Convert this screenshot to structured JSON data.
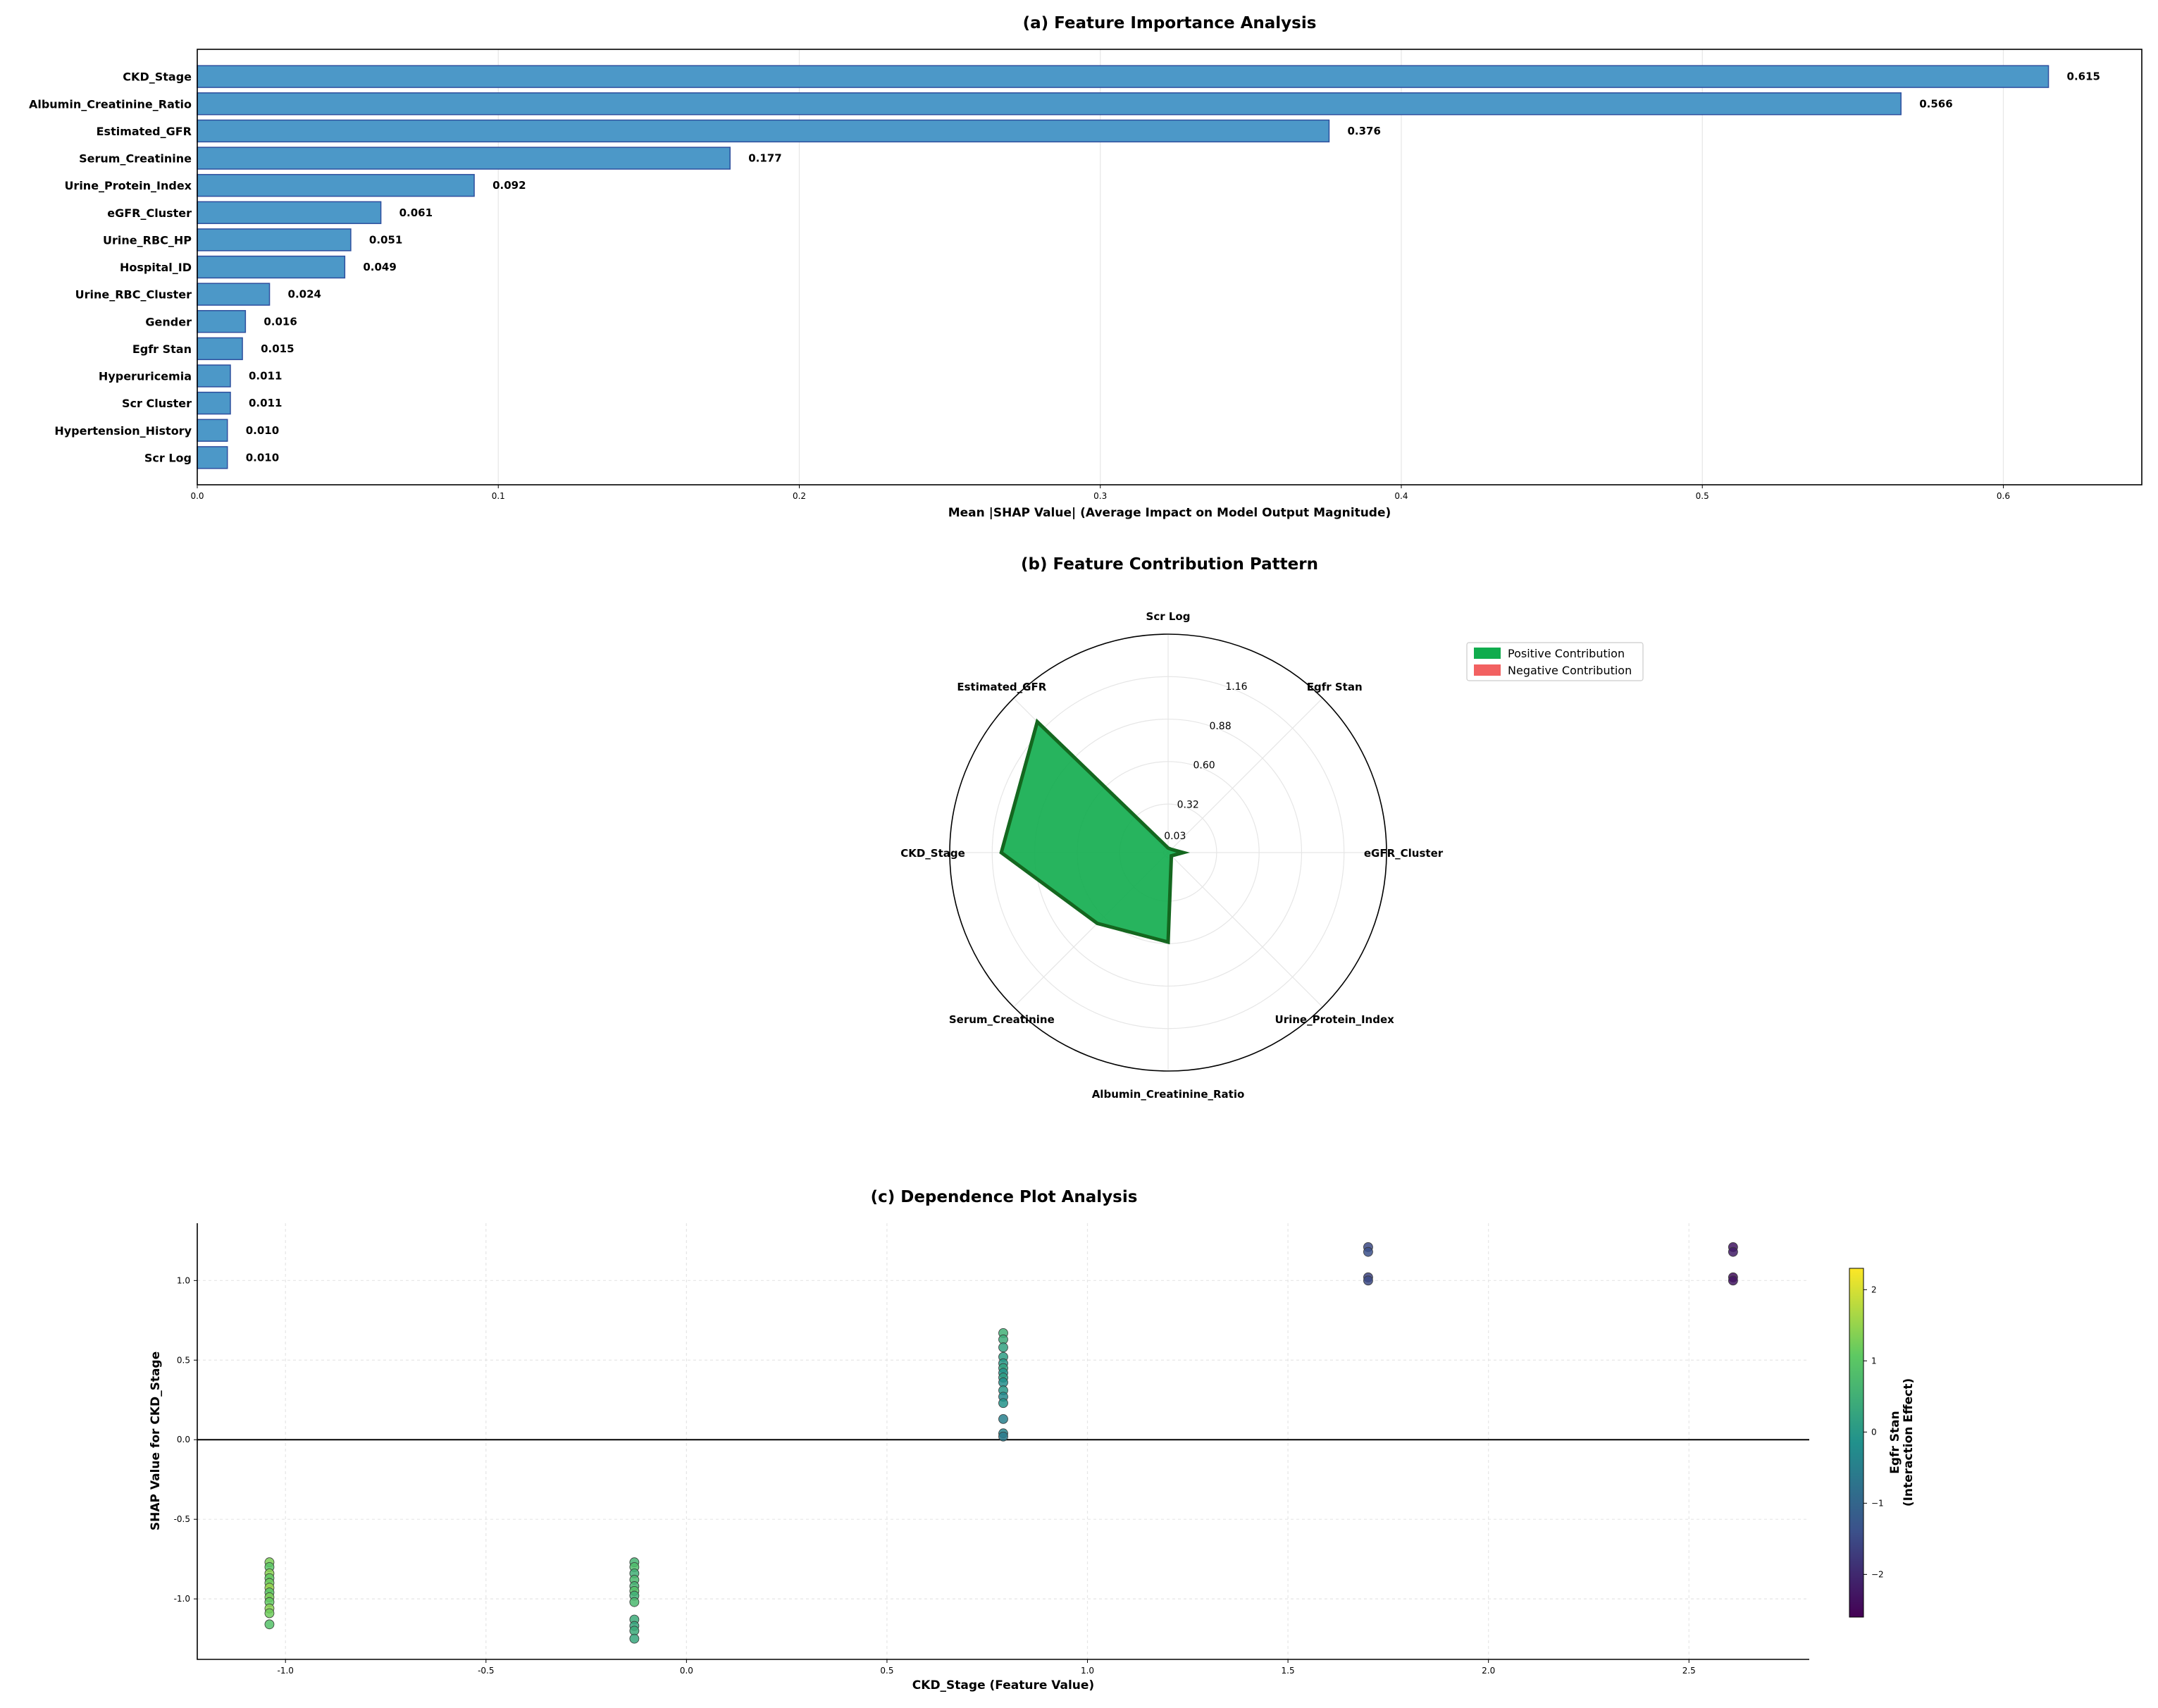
{
  "chart_data": [
    {
      "type": "bar",
      "orientation": "horizontal",
      "title": "(a) Feature Importance Analysis",
      "xlabel": "Mean |SHAP Value| (Average Impact on Model Output Magnitude)",
      "ylabel": "",
      "xlim": [
        0,
        0.646
      ],
      "xticks": [
        "0.0",
        "0.1",
        "0.2",
        "0.3",
        "0.4",
        "0.5",
        "0.6"
      ],
      "grid": "x",
      "color": "#4c98c8",
      "edge_color": "#2e4f9e",
      "categories": [
        "CKD_Stage",
        "Albumin_Creatinine_Ratio",
        "Estimated_GFR",
        "Serum_Creatinine",
        "Urine_Protein_Index",
        "eGFR_Cluster",
        "Urine_RBC_HP",
        "Hospital_ID",
        "Urine_RBC_Cluster",
        "Gender",
        "Egfr Stan",
        "Hyperuricemia",
        "Scr Cluster",
        "Hypertension_History",
        "Scr Log"
      ],
      "values": [
        0.615,
        0.566,
        0.376,
        0.177,
        0.092,
        0.061,
        0.051,
        0.049,
        0.024,
        0.016,
        0.015,
        0.011,
        0.011,
        0.01,
        0.01
      ],
      "value_labels": [
        "0.615",
        "0.566",
        "0.376",
        "0.177",
        "0.092",
        "0.061",
        "0.051",
        "0.049",
        "0.024",
        "0.016",
        "0.015",
        "0.011",
        "0.011",
        "0.010",
        "0.010"
      ]
    },
    {
      "type": "radar",
      "title": "(b) Feature Contribution Pattern",
      "axes": [
        "Scr Log",
        "Egfr Stan",
        "eGFR_Cluster",
        "Urine_Protein_Index",
        "Albumin_Creatinine_Ratio",
        "Serum_Creatinine",
        "CKD_Stage",
        "Estimated_GFR"
      ],
      "values": [
        0.03,
        0.03,
        0.1,
        0.03,
        0.59,
        0.66,
        1.1,
        1.22
      ],
      "rmax": 1.44,
      "rticks": [
        "0.03",
        "0.32",
        "0.60",
        "0.88",
        "1.16"
      ],
      "rtick_values": [
        0.03,
        0.32,
        0.6,
        0.88,
        1.16
      ],
      "legend": [
        {
          "label": "Positive Contribution",
          "color": "#10ac4d"
        },
        {
          "label": "Negative Contribution",
          "color": "#f26161"
        }
      ],
      "legend_position": "top-right",
      "fill_color": "#10ac4d",
      "line_color": "#14671f"
    },
    {
      "type": "scatter",
      "title": "(c) Dependence Plot Analysis",
      "xlabel": "CKD_Stage (Feature Value)",
      "ylabel": "SHAP Value for CKD_Stage",
      "xlim": [
        -1.22,
        2.8
      ],
      "ylim": [
        -1.38,
        1.36
      ],
      "xticks": [
        "-1.0",
        "-0.5",
        "0.0",
        "0.5",
        "1.0",
        "1.5",
        "2.0",
        "2.5"
      ],
      "yticks": [
        "-1.0",
        "-0.5",
        "0.0",
        "0.5",
        "1.0"
      ],
      "zero_line": 0,
      "colorbar": {
        "label": "Egfr Stan\n(Interaction Effect)",
        "label_lines": [
          "Egfr Stan",
          "(Interaction Effect)"
        ],
        "range": [
          -2.6,
          2.3
        ],
        "ticks": [
          "2",
          "1",
          "0",
          "−1",
          "−2"
        ],
        "tick_values": [
          2,
          1,
          0,
          -1,
          -2
        ],
        "colormap": "viridis"
      },
      "points": [
        {
          "x": -1.04,
          "y": -0.77,
          "c": 1.3
        },
        {
          "x": -1.04,
          "y": -0.8,
          "c": 1.0
        },
        {
          "x": -1.04,
          "y": -0.84,
          "c": 1.4
        },
        {
          "x": -1.04,
          "y": -0.87,
          "c": 1.1
        },
        {
          "x": -1.04,
          "y": -0.9,
          "c": 1.2
        },
        {
          "x": -1.04,
          "y": -0.93,
          "c": 1.5
        },
        {
          "x": -1.04,
          "y": -0.96,
          "c": 1.0
        },
        {
          "x": -1.04,
          "y": -0.99,
          "c": 1.3
        },
        {
          "x": -1.04,
          "y": -1.02,
          "c": 1.1
        },
        {
          "x": -1.04,
          "y": -1.06,
          "c": 1.4
        },
        {
          "x": -1.04,
          "y": -1.09,
          "c": 1.2
        },
        {
          "x": -1.04,
          "y": -1.16,
          "c": 0.9
        },
        {
          "x": -0.13,
          "y": -0.77,
          "c": 0.6
        },
        {
          "x": -0.13,
          "y": -0.8,
          "c": 0.8
        },
        {
          "x": -0.13,
          "y": -0.84,
          "c": 0.5
        },
        {
          "x": -0.13,
          "y": -0.88,
          "c": 0.7
        },
        {
          "x": -0.13,
          "y": -0.92,
          "c": 0.6
        },
        {
          "x": -0.13,
          "y": -0.95,
          "c": 0.9
        },
        {
          "x": -0.13,
          "y": -0.98,
          "c": 0.5
        },
        {
          "x": -0.13,
          "y": -1.02,
          "c": 0.7
        },
        {
          "x": -0.13,
          "y": -1.13,
          "c": 0.4
        },
        {
          "x": -0.13,
          "y": -1.17,
          "c": 0.3
        },
        {
          "x": -0.13,
          "y": -1.2,
          "c": 0.4
        },
        {
          "x": -0.13,
          "y": -1.25,
          "c": 0.3
        },
        {
          "x": 0.79,
          "y": 0.67,
          "c": 0.5
        },
        {
          "x": 0.79,
          "y": 0.63,
          "c": 0.4
        },
        {
          "x": 0.79,
          "y": 0.58,
          "c": 0.2
        },
        {
          "x": 0.79,
          "y": 0.52,
          "c": 0.1
        },
        {
          "x": 0.79,
          "y": 0.48,
          "c": 0.0
        },
        {
          "x": 0.79,
          "y": 0.45,
          "c": 0.2
        },
        {
          "x": 0.79,
          "y": 0.42,
          "c": -0.1
        },
        {
          "x": 0.79,
          "y": 0.39,
          "c": 0.1
        },
        {
          "x": 0.79,
          "y": 0.36,
          "c": -0.2
        },
        {
          "x": 0.79,
          "y": 0.31,
          "c": 0.0
        },
        {
          "x": 0.79,
          "y": 0.27,
          "c": -0.3
        },
        {
          "x": 0.79,
          "y": 0.23,
          "c": -0.1
        },
        {
          "x": 0.79,
          "y": 0.13,
          "c": -0.5
        },
        {
          "x": 0.79,
          "y": 0.04,
          "c": -0.4
        },
        {
          "x": 0.79,
          "y": 0.02,
          "c": -0.6
        },
        {
          "x": 1.7,
          "y": 1.21,
          "c": -1.5
        },
        {
          "x": 1.7,
          "y": 1.18,
          "c": -1.4
        },
        {
          "x": 1.7,
          "y": 1.02,
          "c": -1.6
        },
        {
          "x": 1.7,
          "y": 1.0,
          "c": -1.5
        },
        {
          "x": 2.61,
          "y": 1.21,
          "c": -2.3
        },
        {
          "x": 2.61,
          "y": 1.18,
          "c": -2.2
        },
        {
          "x": 2.61,
          "y": 1.02,
          "c": -2.4
        },
        {
          "x": 2.61,
          "y": 1.0,
          "c": -2.3
        }
      ]
    }
  ]
}
